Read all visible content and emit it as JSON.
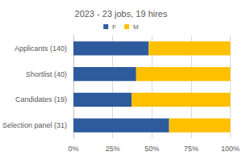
{
  "chart_data": {
    "type": "bar",
    "title": "2023 - 23 jobs, 19 hires",
    "orientation": "horizontal",
    "stacked": true,
    "categories": [
      "Applicants (140)",
      "Shortlist (40)",
      "Candidates (19)",
      "Selection panel (31)"
    ],
    "series": [
      {
        "name": "F",
        "color": "#2E5A9E",
        "values": [
          48,
          40,
          37,
          61
        ]
      },
      {
        "name": "M",
        "color": "#FFC000",
        "values": [
          52,
          60,
          63,
          39
        ]
      }
    ],
    "xlim": [
      0,
      100
    ],
    "xticks": [
      {
        "value": 0,
        "label": "0%"
      },
      {
        "value": 25,
        "label": "25%"
      },
      {
        "value": 50,
        "label": "50%"
      },
      {
        "value": 75,
        "label": "75%"
      },
      {
        "value": 100,
        "label": "100%"
      }
    ],
    "grid": true,
    "legend": "top"
  }
}
